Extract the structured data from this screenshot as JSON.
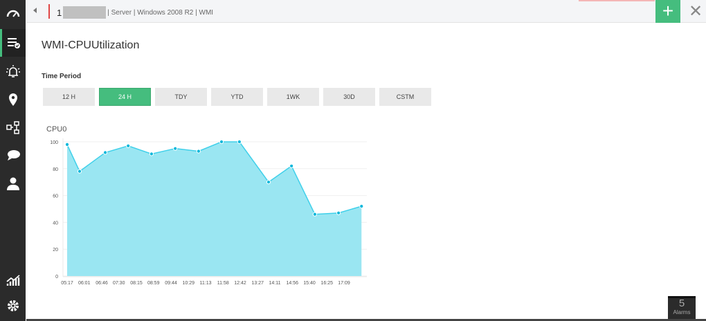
{
  "sidebar": {
    "items": [
      {
        "icon": "dashboard-icon"
      },
      {
        "icon": "inventory-check-icon",
        "active": true
      },
      {
        "icon": "alarm-icon"
      },
      {
        "icon": "map-pin-icon"
      },
      {
        "icon": "workflow-icon"
      },
      {
        "icon": "chat-icon"
      },
      {
        "icon": "user-icon"
      },
      {
        "icon": "reports-icon"
      },
      {
        "icon": "settings-icon"
      }
    ]
  },
  "topbar": {
    "device_prefix": "1",
    "details": "| Server | Windows 2008 R2 | WMI",
    "add_label": "+",
    "close_label": "✕"
  },
  "page": {
    "title": "WMI-CPUUtilization",
    "time_period_label": "Time Period"
  },
  "periods": [
    {
      "label": "12 H"
    },
    {
      "label": "24 H",
      "selected": true
    },
    {
      "label": "TDY"
    },
    {
      "label": "YTD"
    },
    {
      "label": "1WK"
    },
    {
      "label": "30D"
    },
    {
      "label": "CSTM"
    }
  ],
  "alarms": {
    "count": "5",
    "label": "Alarms"
  },
  "colors": {
    "accent": "#45bd7e",
    "series_line": "#3fd0ea",
    "series_fill": "#9ae6f2",
    "point": "#00b7db"
  },
  "chart_data": {
    "type": "area",
    "title": "CPU0",
    "ylim": [
      0,
      100
    ],
    "yticks": [
      0,
      20,
      40,
      60,
      80,
      100
    ],
    "xticks": [
      "05:17",
      "06:01",
      "06:46",
      "07:30",
      "08:15",
      "08:59",
      "09:44",
      "10:29",
      "11:13",
      "11:58",
      "12:42",
      "13:27",
      "14:11",
      "14:56",
      "15:40",
      "16:25",
      "17:09"
    ],
    "grid": true,
    "series": [
      {
        "x": [
          "05:17",
          "05:49",
          "06:55",
          "07:54",
          "08:54",
          "09:55",
          "10:55",
          "11:54",
          "12:40",
          "13:55",
          "14:54",
          "15:54",
          "16:55",
          "17:54"
        ],
        "values": [
          98,
          78,
          92,
          97,
          91,
          95,
          93,
          100,
          100,
          70,
          82,
          46,
          47,
          52
        ]
      }
    ]
  }
}
